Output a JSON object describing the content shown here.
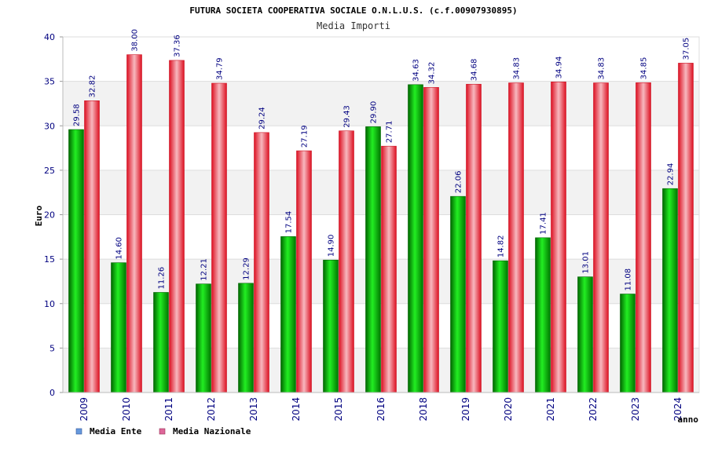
{
  "colors": {
    "ente": "#00aa00",
    "nazionale": "#ee2233",
    "legend_ente": "#6699dd",
    "legend_nazionale": "#dd6699",
    "text": "#000080"
  },
  "chart_data": {
    "type": "bar",
    "title": "FUTURA SOCIETA COOPERATIVA SOCIALE O.N.L.U.S. (c.f.00907930895)",
    "subtitle": "Media Importi",
    "xlabel": "anno",
    "ylabel": "Euro",
    "ylim": [
      0,
      40
    ],
    "yticks": [
      0,
      5,
      10,
      15,
      20,
      25,
      30,
      35,
      40
    ],
    "grid": true,
    "legend_position": "bottom-left",
    "categories": [
      "2009",
      "2010",
      "2011",
      "2012",
      "2013",
      "2014",
      "2015",
      "2016",
      "2018",
      "2019",
      "2020",
      "2021",
      "2022",
      "2023",
      "2024"
    ],
    "series": [
      {
        "name": "Media Ente",
        "values": [
          29.58,
          14.6,
          11.26,
          12.21,
          12.29,
          17.54,
          14.9,
          29.9,
          34.63,
          22.06,
          14.82,
          17.41,
          13.01,
          11.08,
          22.94
        ],
        "labels": [
          "29.58",
          "14.60",
          "11.26",
          "12.21",
          "12.29",
          "17.54",
          "14.90",
          "29.90",
          "34.63",
          "22.06",
          "14.82",
          "17.41",
          "13.01",
          "11.08",
          "22.94"
        ]
      },
      {
        "name": "Media Nazionale",
        "values": [
          32.82,
          38.0,
          37.36,
          34.79,
          29.24,
          27.19,
          29.43,
          27.71,
          34.32,
          34.68,
          34.83,
          34.94,
          34.83,
          34.85,
          37.05
        ],
        "labels": [
          "32.82",
          "38.00",
          "37.36",
          "34.79",
          "29.24",
          "27.19",
          "29.43",
          "27.71",
          "34.32",
          "34.68",
          "34.83",
          "34.94",
          "34.83",
          "34.85",
          "37.05"
        ]
      }
    ]
  }
}
